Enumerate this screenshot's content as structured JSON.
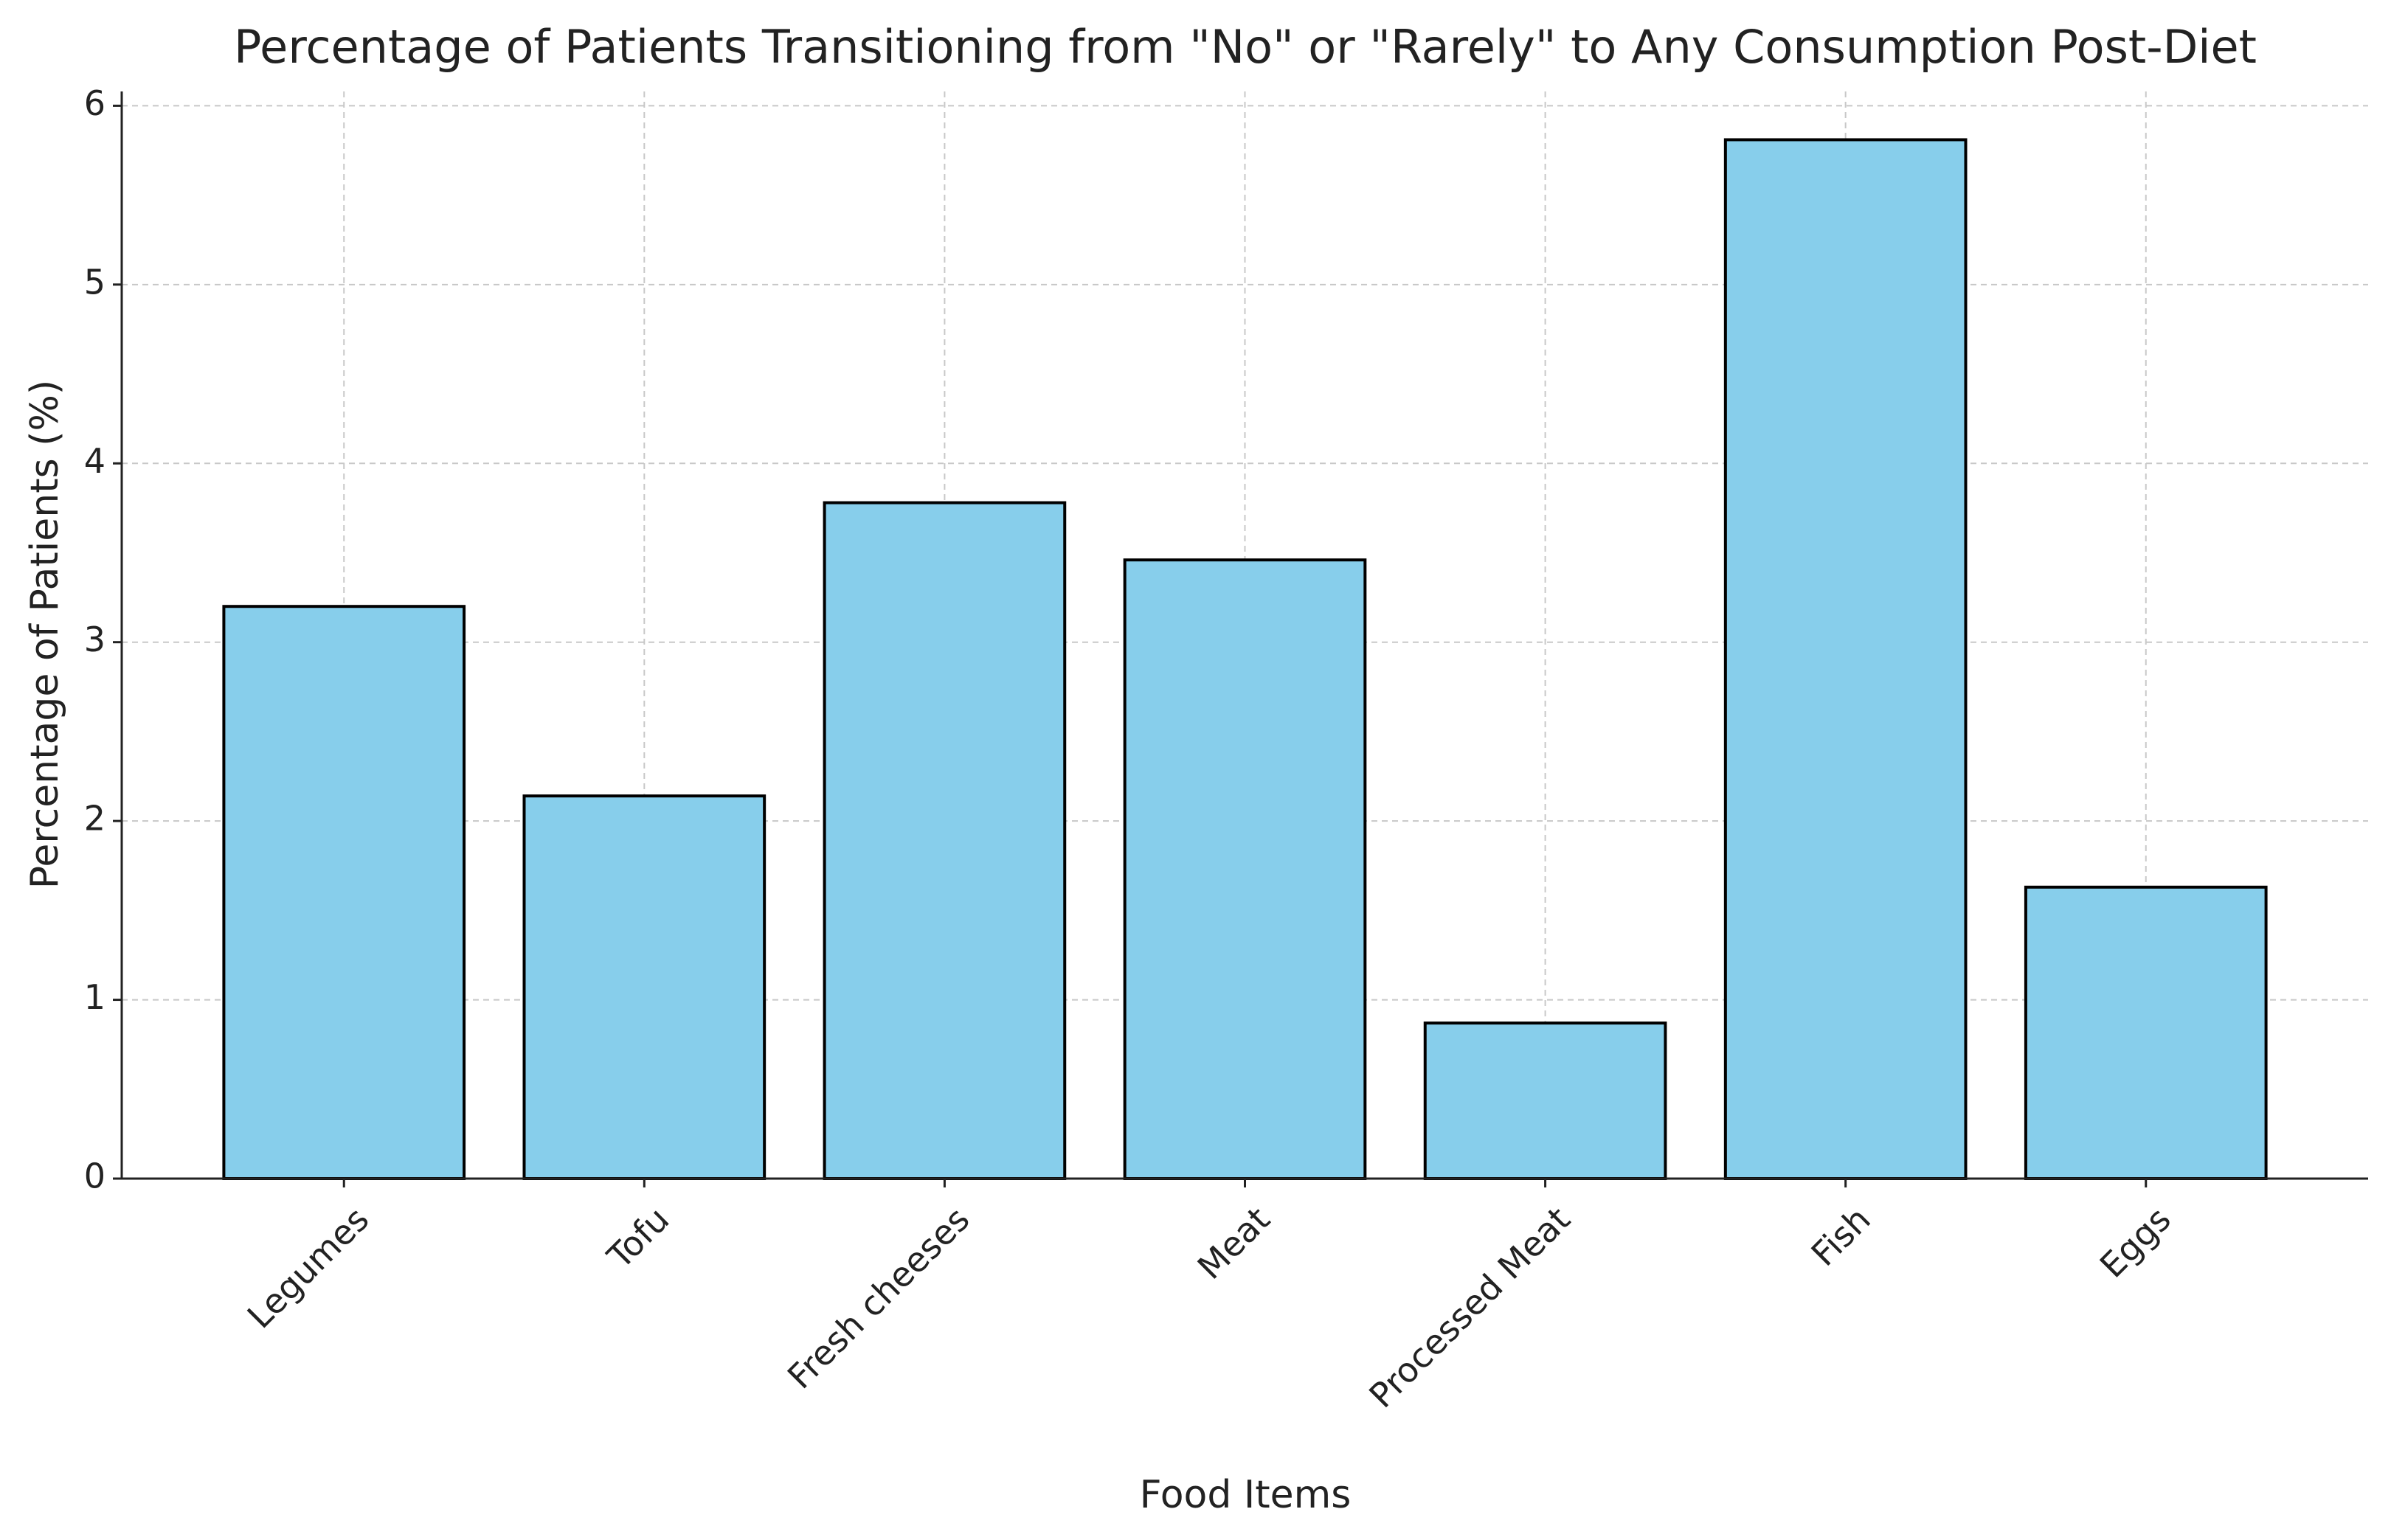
{
  "chart_data": {
    "type": "bar",
    "title": "Percentage of Patients Transitioning from \"No\" or \"Rarely\" to Any Consumption Post-Diet",
    "x_label": "Food Items",
    "y_label": "Percentage of Patients (%)",
    "categories": [
      "Legumes",
      "Tofu",
      "Fresh cheeses",
      "Meat",
      "Processed Meat",
      "Fish",
      "Eggs"
    ],
    "values": [
      3.2,
      2.14,
      3.78,
      3.46,
      0.87,
      5.81,
      1.63
    ],
    "color": "#87ceeb",
    "edge_color": "#000000",
    "ylim": [
      0,
      6.08
    ],
    "yticks": [
      0,
      1,
      2,
      3,
      4,
      5,
      6
    ],
    "grid": true
  }
}
